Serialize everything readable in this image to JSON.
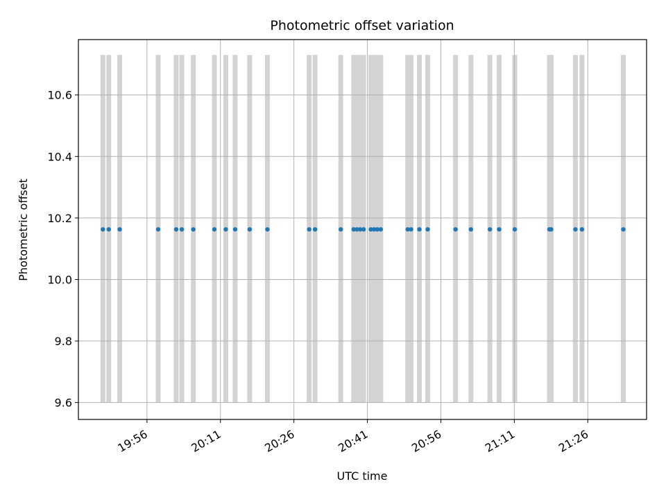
{
  "chart_data": {
    "type": "scatter",
    "title": "Photometric offset variation",
    "xlabel": "UTC time",
    "ylabel": "Photometric offset",
    "grid": true,
    "xlim": [
      "19:42",
      "21:38"
    ],
    "ylim": [
      9.545,
      10.78
    ],
    "x_ticks": [
      "19:56",
      "20:11",
      "20:26",
      "20:41",
      "20:56",
      "21:11",
      "21:26"
    ],
    "y_ticks": [
      9.6,
      9.8,
      10.0,
      10.2,
      10.4,
      10.6
    ],
    "y_tick_labels": [
      "9.6",
      "9.8",
      "10.0",
      "10.2",
      "10.4",
      "10.6"
    ],
    "band_color": "#d3d3d3",
    "band_range": [
      9.6,
      10.73
    ],
    "point_color": "#1f77b4",
    "series": [
      {
        "x": [
          "19:47:00",
          "19:48:12",
          "19:50:26",
          "19:58:17",
          "20:01:58",
          "20:03:07",
          "20:05:28",
          "20:09:46",
          "20:12:05",
          "20:14:00",
          "20:16:58",
          "20:20:35",
          "20:29:07",
          "20:30:19",
          "20:35:34",
          "20:38:12",
          "20:38:52",
          "20:39:32",
          "20:40:14",
          "20:41:42",
          "20:42:22",
          "20:43:01",
          "20:43:44",
          "20:49:14",
          "20:49:55",
          "20:51:37",
          "20:53:19",
          "20:59:00",
          "21:02:08",
          "21:06:01",
          "21:07:54",
          "21:11:05",
          "21:18:10",
          "21:18:31",
          "21:23:28",
          "21:24:49",
          "21:33:15"
        ],
        "y": [
          10.163,
          10.163,
          10.163,
          10.163,
          10.163,
          10.163,
          10.163,
          10.163,
          10.163,
          10.163,
          10.163,
          10.163,
          10.163,
          10.163,
          10.163,
          10.163,
          10.163,
          10.163,
          10.163,
          10.163,
          10.163,
          10.163,
          10.163,
          10.163,
          10.163,
          10.163,
          10.163,
          10.163,
          10.163,
          10.163,
          10.163,
          10.163,
          10.163,
          10.163,
          10.163,
          10.163,
          10.163
        ]
      }
    ]
  }
}
